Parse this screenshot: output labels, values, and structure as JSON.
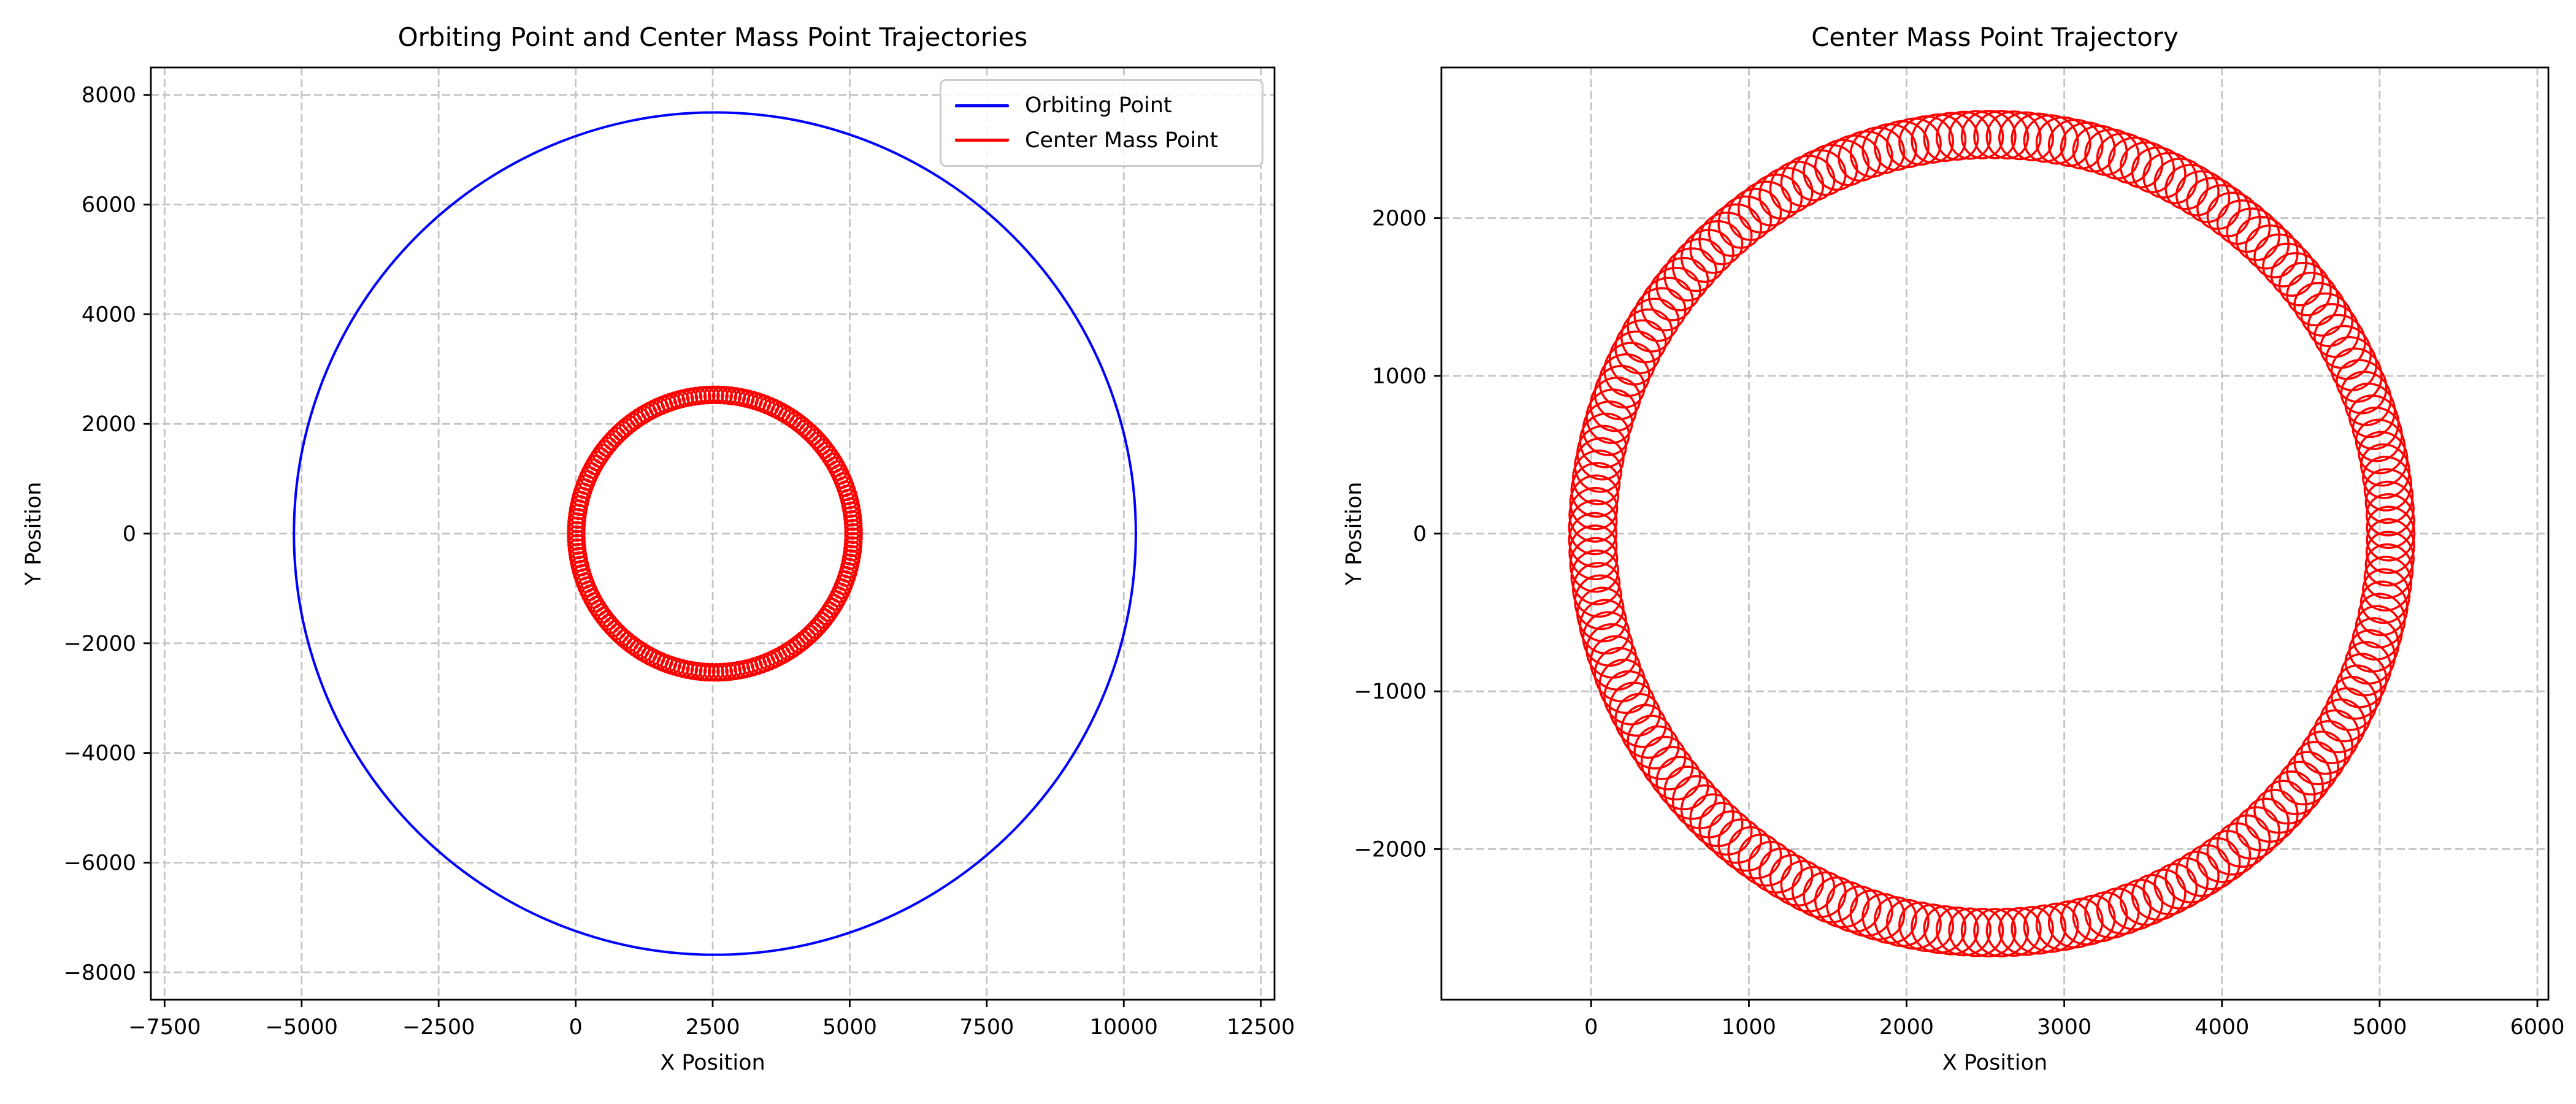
{
  "colors": {
    "background": "#ffffff",
    "orbiting_point": "#0000ff",
    "center_mass_point": "#ff0000",
    "grid": "#c4c4c4",
    "axis": "#000000",
    "legend_border": "#cccccc"
  },
  "chart_data": [
    {
      "type": "line",
      "title": "Orbiting Point and Center Mass Point Trajectories",
      "xlabel": "X Position",
      "ylabel": "Y Position",
      "xlim": [
        -7750,
        12750
      ],
      "ylim": [
        -8500,
        8500
      ],
      "xticks": [
        -7500,
        -5000,
        -2500,
        0,
        2500,
        5000,
        7500,
        10000,
        12500
      ],
      "yticks": [
        -8000,
        -6000,
        -4000,
        -2000,
        0,
        2000,
        4000,
        6000,
        8000
      ],
      "grid": true,
      "grid_style": "dashed",
      "aspect": "equal",
      "legend": {
        "position": "upper right",
        "entries": [
          "Orbiting Point",
          "Center Mass Point"
        ]
      },
      "series": [
        {
          "name": "Orbiting Point",
          "color": "#0000ff",
          "curve": "circle",
          "center_x": 2540,
          "center_y": 0,
          "radius": 7680,
          "linewidth": 4
        },
        {
          "name": "Center Mass Point",
          "color": "#ff0000",
          "curve": "epitrochoid",
          "center_x": 2540,
          "center_y": 0,
          "base_radius": 2530,
          "loop_radius": 150,
          "num_loops": 200,
          "linewidth": 3.5
        }
      ]
    },
    {
      "type": "line",
      "title": "Center Mass Point Trajectory",
      "xlabel": "X Position",
      "ylabel": "Y Position",
      "xlim": [
        -950,
        6070
      ],
      "ylim": [
        -2955,
        2955
      ],
      "xticks": [
        0,
        1000,
        2000,
        3000,
        4000,
        5000,
        6000
      ],
      "yticks": [
        -2000,
        -1000,
        0,
        1000,
        2000
      ],
      "grid": true,
      "grid_style": "dashed",
      "aspect": "equal",
      "series": [
        {
          "name": "Center Mass Point",
          "color": "#ff0000",
          "curve": "epitrochoid",
          "center_x": 2540,
          "center_y": 0,
          "base_radius": 2530,
          "loop_radius": 150,
          "num_loops": 200,
          "linewidth": 3.5
        }
      ]
    }
  ]
}
